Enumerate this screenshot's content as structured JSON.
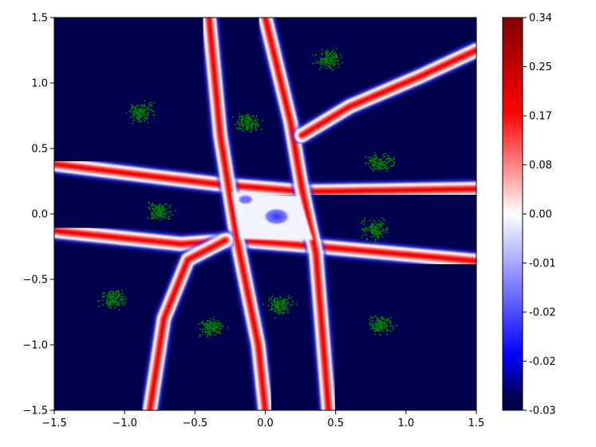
{
  "chart_data": {
    "type": "heatmap",
    "title": "",
    "xlabel": "",
    "ylabel": "",
    "xlim": [
      -1.5,
      1.5
    ],
    "ylim": [
      -1.5,
      1.5
    ],
    "x_ticks": [
      -1.5,
      -1.0,
      -0.5,
      0.0,
      0.5,
      1.0,
      1.5
    ],
    "x_tick_labels": [
      "−1.5",
      "−1.0",
      "−0.5",
      "0.0",
      "0.5",
      "1.0",
      "1.5"
    ],
    "y_ticks": [
      -1.5,
      -1.0,
      -0.5,
      0.0,
      0.5,
      1.0,
      1.5
    ],
    "y_tick_labels": [
      "−1.5",
      "−1.0",
      "−0.5",
      "0.0",
      "0.5",
      "1.0",
      "1.5"
    ],
    "grid": false,
    "colormap": "seismic",
    "colormap_colors": [
      "#00004c",
      "#0000ff",
      "#ffffff",
      "#ff0000",
      "#800000"
    ],
    "colorbar": {
      "min": -0.03,
      "max": 0.34,
      "tick_labels": [
        "0.34",
        "0.25",
        "0.17",
        "0.08",
        "0.00",
        "-0.01",
        "-0.02",
        "-0.02",
        "-0.03"
      ]
    },
    "ridges": [
      {
        "points": [
          [
            -1.5,
            0.38
          ],
          [
            -0.75,
            0.28
          ],
          [
            -0.28,
            0.22
          ],
          [
            0.28,
            0.17
          ],
          [
            1.5,
            0.19
          ]
        ]
      },
      {
        "points": [
          [
            -1.5,
            -0.13
          ],
          [
            -0.6,
            -0.23
          ],
          [
            -0.2,
            -0.2
          ],
          [
            0.38,
            -0.25
          ],
          [
            1.5,
            -0.36
          ]
        ]
      },
      {
        "points": [
          [
            -0.4,
            1.5
          ],
          [
            -0.32,
            0.6
          ],
          [
            -0.2,
            -0.2
          ],
          [
            -0.05,
            -1.0
          ],
          [
            0.0,
            -1.5
          ]
        ]
      },
      {
        "points": [
          [
            0.0,
            1.5
          ],
          [
            0.18,
            0.7
          ],
          [
            0.26,
            0.2
          ],
          [
            0.36,
            -0.3
          ],
          [
            0.45,
            -1.5
          ]
        ]
      },
      {
        "points": [
          [
            0.26,
            0.6
          ],
          [
            0.6,
            0.82
          ],
          [
            1.1,
            1.05
          ],
          [
            1.5,
            1.25
          ]
        ]
      },
      {
        "points": [
          [
            -0.28,
            -0.2
          ],
          [
            -0.55,
            -0.35
          ],
          [
            -0.72,
            -0.8
          ],
          [
            -0.82,
            -1.5
          ]
        ]
      }
    ],
    "blue_blob": {
      "x": 0.08,
      "y": -0.02,
      "rx": 0.1,
      "ry": 0.07,
      "value": -0.02
    },
    "scatter_clusters": [
      {
        "x": 0.45,
        "y": 1.18
      },
      {
        "x": -0.88,
        "y": 0.78
      },
      {
        "x": -0.13,
        "y": 0.7
      },
      {
        "x": 0.82,
        "y": 0.39
      },
      {
        "x": -0.75,
        "y": 0.02
      },
      {
        "x": 0.78,
        "y": -0.12
      },
      {
        "x": -1.08,
        "y": -0.65
      },
      {
        "x": 0.1,
        "y": -0.7
      },
      {
        "x": -0.38,
        "y": -0.87
      },
      {
        "x": 0.82,
        "y": -0.85
      }
    ],
    "scatter_color": "#008000"
  }
}
